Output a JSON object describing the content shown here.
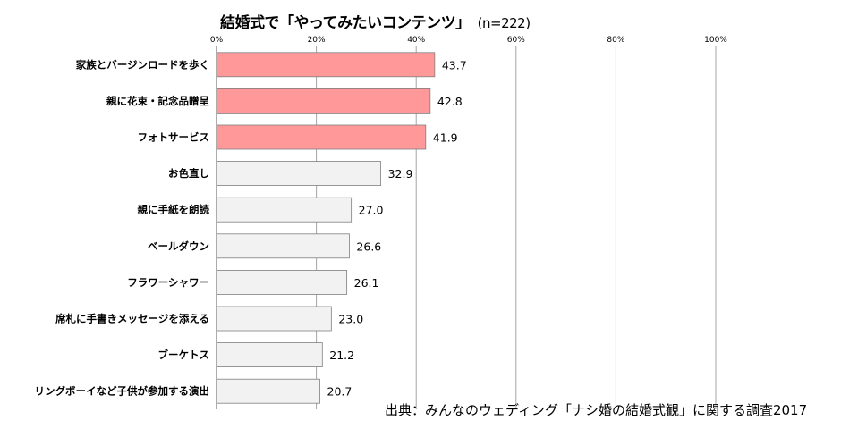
{
  "title": "結婚式で「やってみたいコンテンツ」",
  "sample": "(n=222)",
  "source": "出典：みんなのウェディング「ナシ婚の結婚式観」に関する調査2017",
  "chart_data": {
    "type": "bar",
    "orientation": "horizontal",
    "title": "結婚式で「やってみたいコンテンツ」",
    "xlim": [
      0,
      100
    ],
    "ticks": [
      "0%",
      "20%",
      "40%",
      "60%",
      "80%",
      "100%"
    ],
    "tick_values": [
      0,
      20,
      40,
      60,
      80,
      100
    ],
    "categories": [
      "家族とバージンロードを歩く",
      "親に花束・記念品贈呈",
      "フォトサービス",
      "お色直し",
      "親に手紙を朗読",
      "ベールダウン",
      "フラワーシャワー",
      "席札に手書きメッセージを添える",
      "ブーケトス",
      "リングボーイなど子供が参加する演出"
    ],
    "values": [
      43.7,
      42.8,
      41.9,
      32.9,
      27.0,
      26.6,
      26.1,
      23.0,
      21.2,
      20.7
    ],
    "value_labels": [
      "43.7",
      "42.8",
      "41.9",
      "32.9",
      "27.0",
      "26.6",
      "26.1",
      "23.0",
      "21.2",
      "20.7"
    ],
    "highlight_count": 3,
    "colors": {
      "highlight": "#ff9999",
      "normal": "#f2f2f2",
      "border": "#7f7f7f",
      "grid": "#a6a6a6"
    },
    "grid": true
  }
}
